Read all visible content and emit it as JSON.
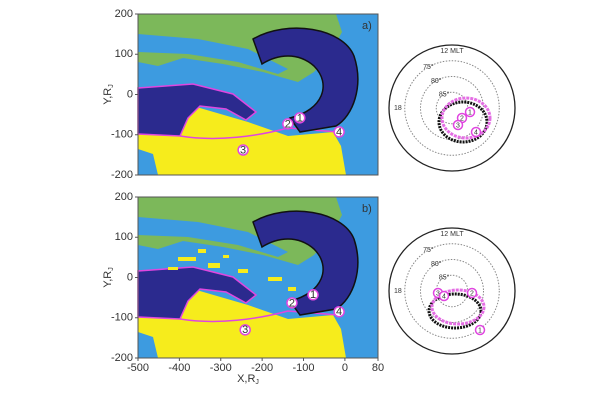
{
  "chart_data": [
    {
      "type": "map",
      "panel_label": "a)",
      "xlim": [
        -500,
        80
      ],
      "ylim": [
        -200,
        200
      ],
      "yticks": [
        -200,
        -100,
        0,
        100,
        200
      ],
      "y_label": "Y,R",
      "y_label_subscript": "J",
      "markers": [
        {
          "label": "1",
          "x": -109,
          "y": -58
        },
        {
          "label": "2",
          "x": -138,
          "y": -73
        },
        {
          "label": "3",
          "x": -246,
          "y": -138
        },
        {
          "label": "4",
          "x": -14,
          "y": -93
        }
      ],
      "polar": {
        "title": "12 MLT",
        "rlim": [
          90,
          70
        ],
        "rings": [
          {
            "value": 75,
            "label": "75°"
          },
          {
            "value": 80,
            "label": "80°"
          },
          {
            "value": 85,
            "label": "85°"
          }
        ],
        "left_label": "18",
        "markers": [
          "1",
          "2",
          "3",
          "4"
        ]
      }
    },
    {
      "type": "map",
      "panel_label": "b)",
      "xlim": [
        -500,
        80
      ],
      "ylim": [
        -200,
        200
      ],
      "xticks": [
        -500,
        -400,
        -300,
        -200,
        -100,
        0,
        80
      ],
      "yticks": [
        -200,
        -100,
        0,
        100,
        200
      ],
      "x_label": "X,R",
      "x_label_subscript": "J",
      "y_label": "Y,R",
      "y_label_subscript": "J",
      "markers": [
        {
          "label": "1",
          "x": -77,
          "y": -43
        },
        {
          "label": "2",
          "x": -128,
          "y": -63
        },
        {
          "label": "3",
          "x": -241,
          "y": -130
        },
        {
          "label": "4",
          "x": -14,
          "y": -85
        }
      ],
      "polar": {
        "title": "12 MLT",
        "rlim": [
          90,
          70
        ],
        "rings": [
          {
            "value": 75,
            "label": "75°"
          },
          {
            "value": 80,
            "label": "80°"
          },
          {
            "value": 85,
            "label": "85°"
          }
        ],
        "left_label": "18",
        "markers": [
          "1",
          "2",
          "3",
          "4"
        ]
      }
    }
  ]
}
